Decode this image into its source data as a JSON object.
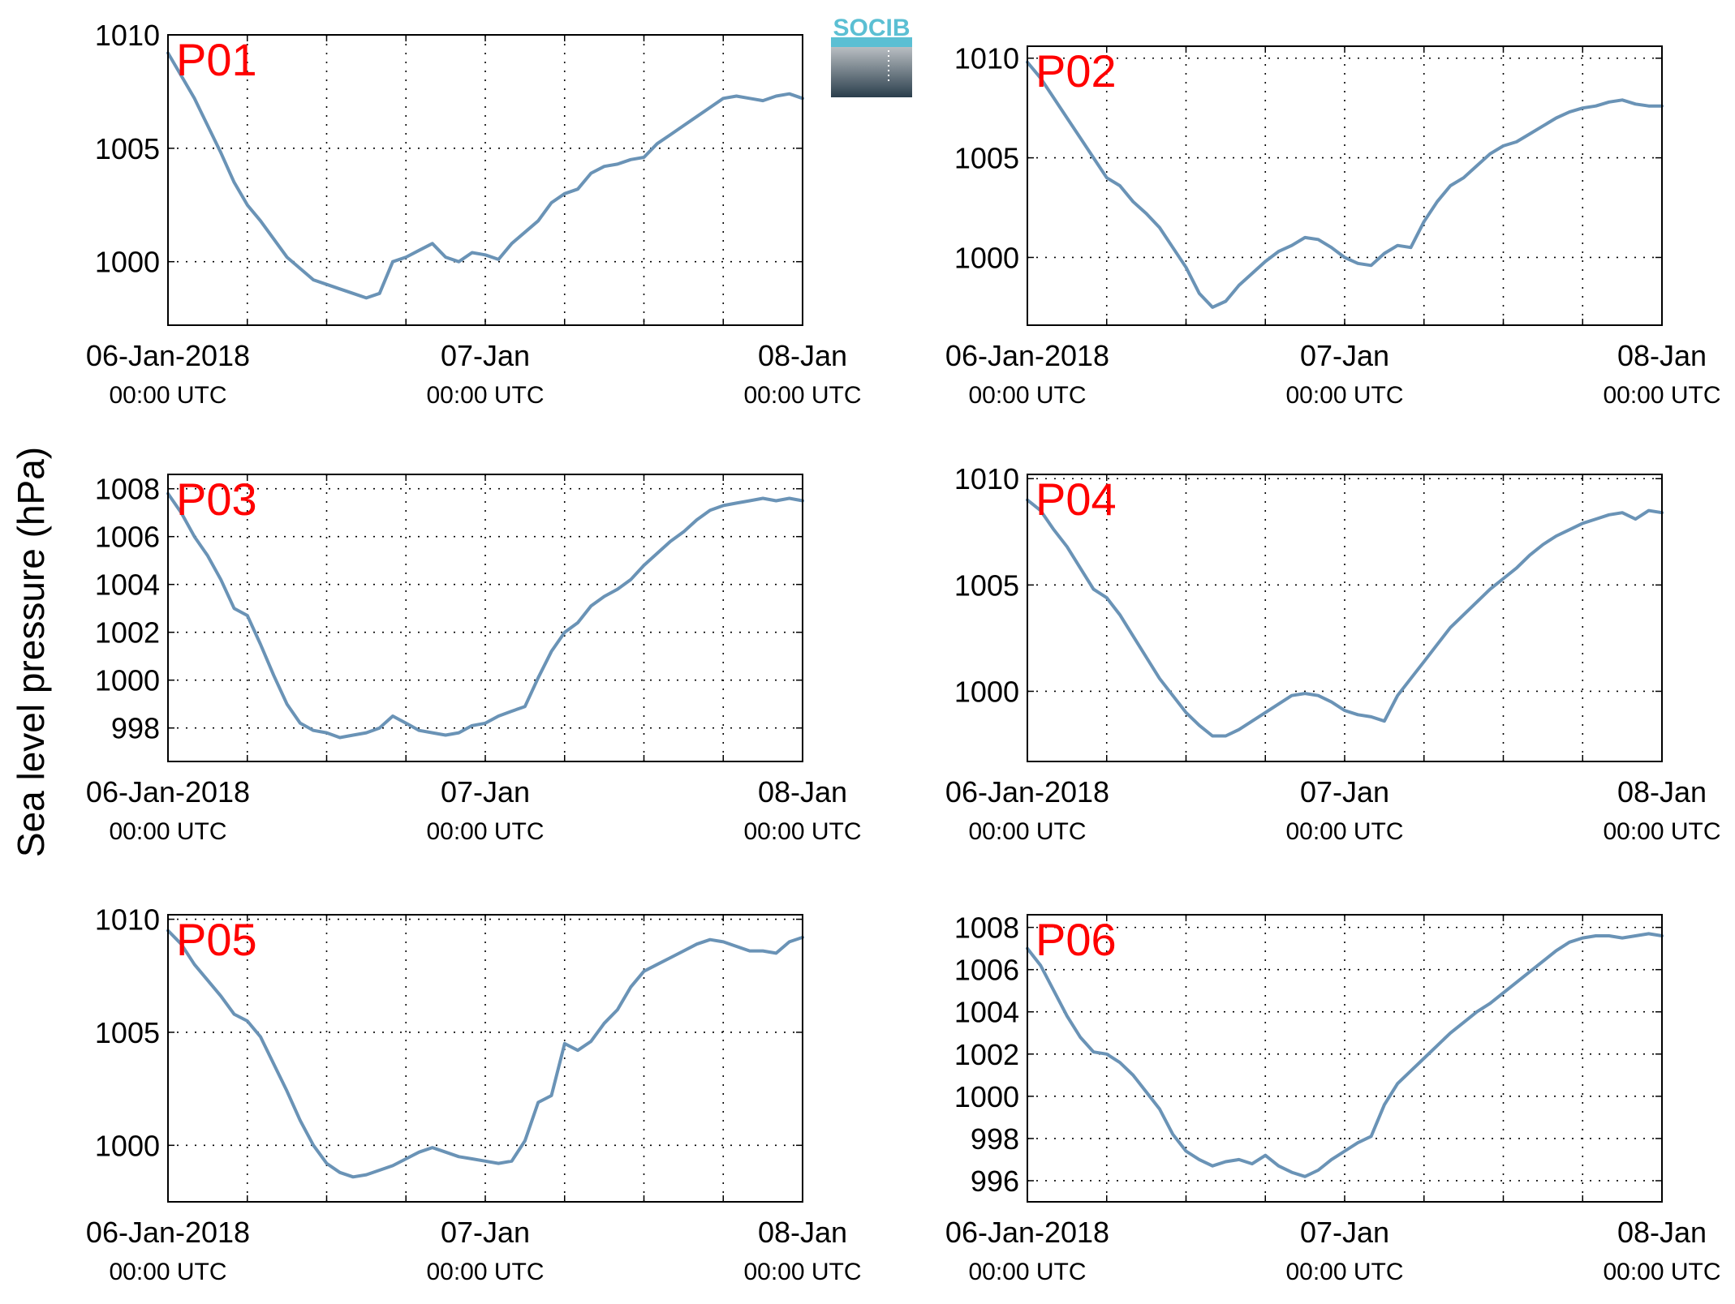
{
  "figure": {
    "ylabel": "Sea level pressure (hPa)",
    "line_color": "#6a93b6",
    "label_color": "#ff0000",
    "logo": {
      "text": "SOCIB",
      "top_color": "#5bbfd3",
      "bottom_color": "#2a3e4c"
    }
  },
  "chart_data": [
    {
      "type": "line",
      "title": "P01",
      "x_ticks": [
        {
          "main": "06-Jan-2018",
          "sub": "00:00 UTC"
        },
        {
          "main": "07-Jan",
          "sub": "00:00 UTC"
        },
        {
          "main": "08-Jan",
          "sub": "00:00 UTC"
        }
      ],
      "xlim": [
        0,
        48
      ],
      "x_grid_step": 6,
      "ylim": [
        997.2,
        1010
      ],
      "yticks": [
        1000,
        1005,
        1010
      ],
      "grid": true,
      "x": [
        0,
        1,
        2,
        3,
        4,
        5,
        6,
        7,
        8,
        9,
        10,
        11,
        12,
        13,
        14,
        15,
        16,
        17,
        18,
        19,
        20,
        21,
        22,
        23,
        24,
        25,
        26,
        27,
        28,
        29,
        30,
        31,
        32,
        33,
        34,
        35,
        36,
        37,
        38,
        39,
        40,
        41,
        42,
        43,
        44,
        45,
        46,
        47,
        48
      ],
      "y": [
        1009.2,
        1008.2,
        1007.2,
        1006.0,
        1004.8,
        1003.5,
        1002.5,
        1001.8,
        1001.0,
        1000.2,
        999.7,
        999.2,
        999.0,
        998.8,
        998.6,
        998.4,
        998.6,
        1000.0,
        1000.2,
        1000.5,
        1000.8,
        1000.2,
        1000.0,
        1000.4,
        1000.3,
        1000.1,
        1000.8,
        1001.3,
        1001.8,
        1002.6,
        1003.0,
        1003.2,
        1003.9,
        1004.2,
        1004.3,
        1004.5,
        1004.6,
        1005.2,
        1005.6,
        1006.0,
        1006.4,
        1006.8,
        1007.2,
        1007.3,
        1007.2,
        1007.1,
        1007.3,
        1007.4,
        1007.2
      ]
    },
    {
      "type": "line",
      "title": "P02",
      "x_ticks": [
        {
          "main": "06-Jan-2018",
          "sub": "00:00 UTC"
        },
        {
          "main": "07-Jan",
          "sub": "00:00 UTC"
        },
        {
          "main": "08-Jan",
          "sub": "00:00 UTC"
        }
      ],
      "xlim": [
        0,
        48
      ],
      "x_grid_step": 6,
      "ylim": [
        996.6,
        1010.6
      ],
      "yticks": [
        1000,
        1005,
        1010
      ],
      "grid": true,
      "x": [
        0,
        1,
        2,
        3,
        4,
        5,
        6,
        7,
        8,
        9,
        10,
        11,
        12,
        13,
        14,
        15,
        16,
        17,
        18,
        19,
        20,
        21,
        22,
        23,
        24,
        25,
        26,
        27,
        28,
        29,
        30,
        31,
        32,
        33,
        34,
        35,
        36,
        37,
        38,
        39,
        40,
        41,
        42,
        43,
        44,
        45,
        46,
        47,
        48
      ],
      "y": [
        1009.8,
        1009.0,
        1008.0,
        1007.0,
        1006.0,
        1005.0,
        1004.0,
        1003.6,
        1002.8,
        1002.2,
        1001.5,
        1000.5,
        999.5,
        998.2,
        997.5,
        997.8,
        998.6,
        999.2,
        999.8,
        1000.3,
        1000.6,
        1001.0,
        1000.9,
        1000.5,
        1000.0,
        999.7,
        999.6,
        1000.2,
        1000.6,
        1000.5,
        1001.8,
        1002.8,
        1003.6,
        1004.0,
        1004.6,
        1005.2,
        1005.6,
        1005.8,
        1006.2,
        1006.6,
        1007.0,
        1007.3,
        1007.5,
        1007.6,
        1007.8,
        1007.9,
        1007.7,
        1007.6,
        1007.6
      ]
    },
    {
      "type": "line",
      "title": "P03",
      "x_ticks": [
        {
          "main": "06-Jan-2018",
          "sub": "00:00 UTC"
        },
        {
          "main": "07-Jan",
          "sub": "00:00 UTC"
        },
        {
          "main": "08-Jan",
          "sub": "00:00 UTC"
        }
      ],
      "xlim": [
        0,
        48
      ],
      "x_grid_step": 6,
      "ylim": [
        996.6,
        1008.6
      ],
      "yticks": [
        998,
        1000,
        1002,
        1004,
        1006,
        1008
      ],
      "grid": true,
      "x": [
        0,
        1,
        2,
        3,
        4,
        5,
        6,
        7,
        8,
        9,
        10,
        11,
        12,
        13,
        14,
        15,
        16,
        17,
        18,
        19,
        20,
        21,
        22,
        23,
        24,
        25,
        26,
        27,
        28,
        29,
        30,
        31,
        32,
        33,
        34,
        35,
        36,
        37,
        38,
        39,
        40,
        41,
        42,
        43,
        44,
        45,
        46,
        47,
        48
      ],
      "y": [
        1007.8,
        1007.0,
        1006.0,
        1005.2,
        1004.2,
        1003.0,
        1002.7,
        1001.5,
        1000.2,
        999.0,
        998.2,
        997.9,
        997.8,
        997.6,
        997.7,
        997.8,
        998.0,
        998.5,
        998.2,
        997.9,
        997.8,
        997.7,
        997.8,
        998.1,
        998.2,
        998.5,
        998.7,
        998.9,
        1000.1,
        1001.2,
        1002.0,
        1002.4,
        1003.1,
        1003.5,
        1003.8,
        1004.2,
        1004.8,
        1005.3,
        1005.8,
        1006.2,
        1006.7,
        1007.1,
        1007.3,
        1007.4,
        1007.5,
        1007.6,
        1007.5,
        1007.6,
        1007.5
      ]
    },
    {
      "type": "line",
      "title": "P04",
      "x_ticks": [
        {
          "main": "06-Jan-2018",
          "sub": "00:00 UTC"
        },
        {
          "main": "07-Jan",
          "sub": "00:00 UTC"
        },
        {
          "main": "08-Jan",
          "sub": "00:00 UTC"
        }
      ],
      "xlim": [
        0,
        48
      ],
      "x_grid_step": 6,
      "ylim": [
        996.7,
        1010.2
      ],
      "yticks": [
        1000,
        1005,
        1010
      ],
      "grid": true,
      "x": [
        0,
        1,
        2,
        3,
        4,
        5,
        6,
        7,
        8,
        9,
        10,
        11,
        12,
        13,
        14,
        15,
        16,
        17,
        18,
        19,
        20,
        21,
        22,
        23,
        24,
        25,
        26,
        27,
        28,
        29,
        30,
        31,
        32,
        33,
        34,
        35,
        36,
        37,
        38,
        39,
        40,
        41,
        42,
        43,
        44,
        45,
        46,
        47,
        48
      ],
      "y": [
        1009.0,
        1008.5,
        1007.6,
        1006.8,
        1005.8,
        1004.8,
        1004.4,
        1003.6,
        1002.6,
        1001.6,
        1000.6,
        999.8,
        999.0,
        998.4,
        997.9,
        997.9,
        998.2,
        998.6,
        999.0,
        999.4,
        999.8,
        999.9,
        999.8,
        999.5,
        999.1,
        998.9,
        998.8,
        998.6,
        999.8,
        1000.6,
        1001.4,
        1002.2,
        1003.0,
        1003.6,
        1004.2,
        1004.8,
        1005.3,
        1005.8,
        1006.4,
        1006.9,
        1007.3,
        1007.6,
        1007.9,
        1008.1,
        1008.3,
        1008.4,
        1008.1,
        1008.5,
        1008.4
      ]
    },
    {
      "type": "line",
      "title": "P05",
      "x_ticks": [
        {
          "main": "06-Jan-2018",
          "sub": "00:00 UTC"
        },
        {
          "main": "07-Jan",
          "sub": "00:00 UTC"
        },
        {
          "main": "08-Jan",
          "sub": "00:00 UTC"
        }
      ],
      "xlim": [
        0,
        48
      ],
      "x_grid_step": 6,
      "ylim": [
        997.5,
        1010.2
      ],
      "yticks": [
        1000,
        1005,
        1010
      ],
      "grid": true,
      "x": [
        0,
        1,
        2,
        3,
        4,
        5,
        6,
        7,
        8,
        9,
        10,
        11,
        12,
        13,
        14,
        15,
        16,
        17,
        18,
        19,
        20,
        21,
        22,
        23,
        24,
        25,
        26,
        27,
        28,
        29,
        30,
        31,
        32,
        33,
        34,
        35,
        36,
        37,
        38,
        39,
        40,
        41,
        42,
        43,
        44,
        45,
        46,
        47,
        48
      ],
      "y": [
        1009.5,
        1008.9,
        1008.0,
        1007.3,
        1006.6,
        1005.8,
        1005.5,
        1004.8,
        1003.6,
        1002.4,
        1001.1,
        1000.0,
        999.2,
        998.8,
        998.6,
        998.7,
        998.9,
        999.1,
        999.4,
        999.7,
        999.9,
        999.7,
        999.5,
        999.4,
        999.3,
        999.2,
        999.3,
        1000.2,
        1001.9,
        1002.2,
        1004.5,
        1004.2,
        1004.6,
        1005.4,
        1006.0,
        1007.0,
        1007.7,
        1008.0,
        1008.3,
        1008.6,
        1008.9,
        1009.1,
        1009.0,
        1008.8,
        1008.6,
        1008.6,
        1008.5,
        1009.0,
        1009.2
      ]
    },
    {
      "type": "line",
      "title": "P06",
      "x_ticks": [
        {
          "main": "06-Jan-2018",
          "sub": "00:00 UTC"
        },
        {
          "main": "07-Jan",
          "sub": "00:00 UTC"
        },
        {
          "main": "08-Jan",
          "sub": "00:00 UTC"
        }
      ],
      "xlim": [
        0,
        48
      ],
      "x_grid_step": 6,
      "ylim": [
        995.0,
        1008.6
      ],
      "yticks": [
        996,
        998,
        1000,
        1002,
        1004,
        1006,
        1008
      ],
      "grid": true,
      "x": [
        0,
        1,
        2,
        3,
        4,
        5,
        6,
        7,
        8,
        9,
        10,
        11,
        12,
        13,
        14,
        15,
        16,
        17,
        18,
        19,
        20,
        21,
        22,
        23,
        24,
        25,
        26,
        27,
        28,
        29,
        30,
        31,
        32,
        33,
        34,
        35,
        36,
        37,
        38,
        39,
        40,
        41,
        42,
        43,
        44,
        45,
        46,
        47,
        48
      ],
      "y": [
        1007.0,
        1006.2,
        1005.0,
        1003.8,
        1002.8,
        1002.1,
        1002.0,
        1001.6,
        1001.0,
        1000.2,
        999.4,
        998.2,
        997.4,
        997.0,
        996.7,
        996.9,
        997.0,
        996.8,
        997.2,
        996.7,
        996.4,
        996.2,
        996.5,
        997.0,
        997.4,
        997.8,
        998.1,
        999.6,
        1000.6,
        1001.2,
        1001.8,
        1002.4,
        1003.0,
        1003.5,
        1004.0,
        1004.4,
        1004.9,
        1005.4,
        1005.9,
        1006.4,
        1006.9,
        1007.3,
        1007.5,
        1007.6,
        1007.6,
        1007.5,
        1007.6,
        1007.7,
        1007.6
      ]
    }
  ]
}
